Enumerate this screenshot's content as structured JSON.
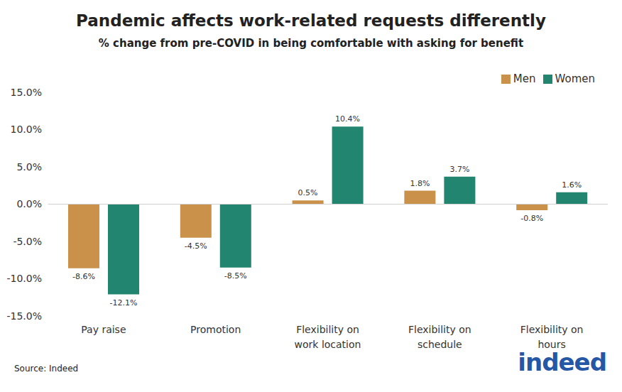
{
  "chart_data": {
    "type": "bar",
    "title": "Pandemic affects work-related requests differently",
    "subtitle": "% change from pre-COVID in being comfortable with asking for benefit",
    "categories": [
      "Pay raise",
      "Promotion",
      "Flexibility on work location",
      "Flexibility on schedule",
      "Flexibility on hours"
    ],
    "series": [
      {
        "name": "Men",
        "color": "#c9914a",
        "values": [
          -8.6,
          -4.5,
          0.5,
          1.8,
          -0.8
        ],
        "value_labels": [
          "-8.6%",
          "-4.5%",
          "0.5%",
          "1.8%",
          "-0.8%"
        ]
      },
      {
        "name": "Women",
        "color": "#218570",
        "values": [
          -12.1,
          -8.5,
          10.4,
          3.7,
          1.6
        ],
        "value_labels": [
          "-12.1%",
          "-8.5%",
          "10.4%",
          "3.7%",
          "1.6%"
        ]
      }
    ],
    "ylim": [
      -15,
      15
    ],
    "yticks": [
      {
        "value": -15,
        "label": "-15.0%"
      },
      {
        "value": -10,
        "label": "-10.0%"
      },
      {
        "value": -5,
        "label": "-5.0%"
      },
      {
        "value": 0,
        "label": "0.0%"
      },
      {
        "value": 5,
        "label": "5.0%"
      },
      {
        "value": 10,
        "label": "10.0%"
      },
      {
        "value": 15,
        "label": "15.0%"
      }
    ],
    "grid": false,
    "legend": "upper right",
    "data_labels": true,
    "source": "Source: Indeed",
    "logo": "indeed"
  }
}
